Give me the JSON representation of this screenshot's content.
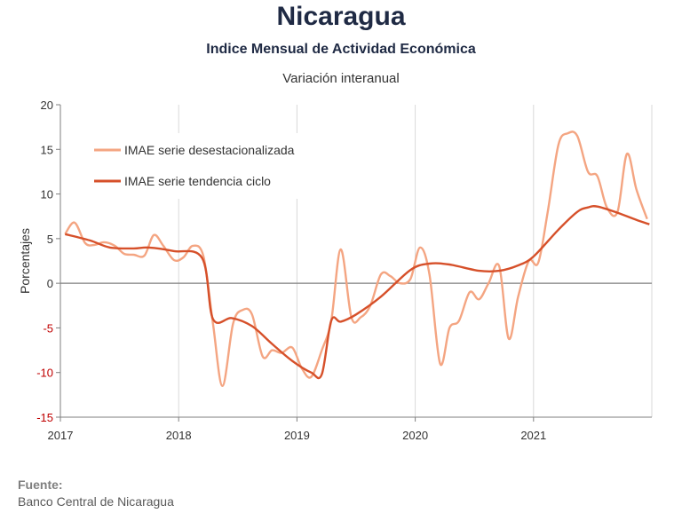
{
  "header": {
    "title": "Nicaragua",
    "subtitle": "Indice Mensual de  Actividad Económica",
    "subtitle2": "Variación interanual"
  },
  "source": {
    "label": "Fuente:",
    "text": "Banco Central de Nicaragua"
  },
  "chart_data": {
    "type": "line",
    "ylabel": "Porcentajes",
    "xlabel": "",
    "xlim": [
      2017.0,
      2022.0
    ],
    "ylim": [
      -15,
      20
    ],
    "yticks": [
      20,
      15,
      10,
      5,
      0,
      -5,
      -10,
      -15
    ],
    "xticks": [
      {
        "value": 2017,
        "label": "2017"
      },
      {
        "value": 2018,
        "label": "2018"
      },
      {
        "value": 2019,
        "label": "2019"
      },
      {
        "value": 2020,
        "label": "2020"
      },
      {
        "value": 2021,
        "label": "2021"
      }
    ],
    "grid": "vertical",
    "legend": "top-left",
    "colors": {
      "desestacionalizada": "#f4a582",
      "tendencia": "#d6502a",
      "negative_tick": "#c00000",
      "axis": "#7f7f7f"
    },
    "series": [
      {
        "name": "IMAE serie desestacionalizada",
        "key": "desestacionalizada",
        "points": [
          [
            2017.04,
            5.5
          ],
          [
            2017.12,
            6.8
          ],
          [
            2017.21,
            4.5
          ],
          [
            2017.29,
            4.3
          ],
          [
            2017.37,
            4.6
          ],
          [
            2017.46,
            4.2
          ],
          [
            2017.54,
            3.3
          ],
          [
            2017.62,
            3.2
          ],
          [
            2017.71,
            3.1
          ],
          [
            2017.79,
            5.4
          ],
          [
            2017.87,
            4.2
          ],
          [
            2017.96,
            2.6
          ],
          [
            2018.04,
            2.9
          ],
          [
            2018.12,
            4.2
          ],
          [
            2018.21,
            3.0
          ],
          [
            2018.29,
            -4.5
          ],
          [
            2018.37,
            -11.5
          ],
          [
            2018.46,
            -4.5
          ],
          [
            2018.54,
            -3.0
          ],
          [
            2018.62,
            -3.5
          ],
          [
            2018.71,
            -8.2
          ],
          [
            2018.79,
            -7.5
          ],
          [
            2018.87,
            -7.8
          ],
          [
            2018.96,
            -7.2
          ],
          [
            2019.04,
            -9.5
          ],
          [
            2019.12,
            -10.5
          ],
          [
            2019.21,
            -7.5
          ],
          [
            2019.29,
            -4.2
          ],
          [
            2019.37,
            3.8
          ],
          [
            2019.46,
            -3.8
          ],
          [
            2019.54,
            -3.8
          ],
          [
            2019.62,
            -2.5
          ],
          [
            2019.71,
            1.0
          ],
          [
            2019.79,
            0.8
          ],
          [
            2019.87,
            0.0
          ],
          [
            2019.96,
            0.5
          ],
          [
            2020.04,
            4.0
          ],
          [
            2020.12,
            1.0
          ],
          [
            2020.21,
            -9.0
          ],
          [
            2020.29,
            -5.0
          ],
          [
            2020.37,
            -4.2
          ],
          [
            2020.46,
            -1.0
          ],
          [
            2020.54,
            -1.8
          ],
          [
            2020.62,
            0.0
          ],
          [
            2020.71,
            1.9
          ],
          [
            2020.79,
            -6.2
          ],
          [
            2020.87,
            -1.5
          ],
          [
            2020.96,
            2.5
          ],
          [
            2021.04,
            2.3
          ],
          [
            2021.12,
            8.0
          ],
          [
            2021.21,
            15.5
          ],
          [
            2021.29,
            16.8
          ],
          [
            2021.37,
            16.5
          ],
          [
            2021.46,
            12.5
          ],
          [
            2021.54,
            12.0
          ],
          [
            2021.62,
            8.5
          ],
          [
            2021.71,
            8.0
          ],
          [
            2021.79,
            14.5
          ],
          [
            2021.87,
            10.5
          ],
          [
            2021.96,
            7.2
          ]
        ]
      },
      {
        "name": "IMAE serie  tendencia ciclo",
        "key": "tendencia",
        "points": [
          [
            2017.04,
            5.5
          ],
          [
            2017.25,
            4.8
          ],
          [
            2017.42,
            4.0
          ],
          [
            2017.62,
            3.9
          ],
          [
            2017.75,
            4.0
          ],
          [
            2017.96,
            3.6
          ],
          [
            2018.2,
            2.8
          ],
          [
            2018.29,
            -4.0
          ],
          [
            2018.45,
            -3.9
          ],
          [
            2018.62,
            -4.8
          ],
          [
            2018.79,
            -6.8
          ],
          [
            2018.96,
            -8.7
          ],
          [
            2019.12,
            -10.0
          ],
          [
            2019.21,
            -10.2
          ],
          [
            2019.29,
            -4.2
          ],
          [
            2019.37,
            -4.3
          ],
          [
            2019.5,
            -3.5
          ],
          [
            2019.71,
            -1.5
          ],
          [
            2019.96,
            1.5
          ],
          [
            2020.12,
            2.2
          ],
          [
            2020.29,
            2.1
          ],
          [
            2020.54,
            1.4
          ],
          [
            2020.71,
            1.4
          ],
          [
            2020.87,
            2.0
          ],
          [
            2021.0,
            3.0
          ],
          [
            2021.21,
            6.0
          ],
          [
            2021.37,
            8.0
          ],
          [
            2021.46,
            8.5
          ],
          [
            2021.54,
            8.6
          ],
          [
            2021.71,
            7.9
          ],
          [
            2021.87,
            7.1
          ],
          [
            2021.98,
            6.6
          ]
        ]
      }
    ]
  }
}
